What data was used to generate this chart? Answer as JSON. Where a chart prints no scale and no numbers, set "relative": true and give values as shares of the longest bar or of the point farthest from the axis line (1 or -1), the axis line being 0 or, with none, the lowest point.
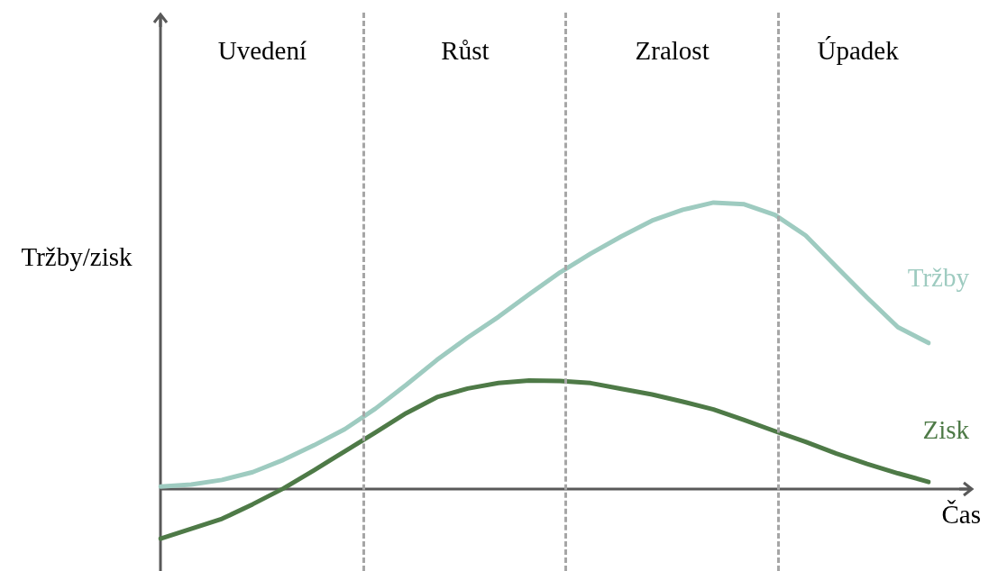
{
  "chart_data": {
    "type": "line",
    "relative": true,
    "xlabel": "Čas",
    "ylabel": "Tržby/zisk",
    "legend": false,
    "marker": "none",
    "line_style": "solid",
    "categories": [
      null,
      null,
      null,
      null,
      null,
      null,
      null,
      null,
      null,
      null,
      null,
      null,
      null,
      null,
      null,
      null,
      null,
      null,
      null,
      null,
      null,
      null,
      null,
      null,
      null,
      null
    ],
    "series": [
      {
        "name": "Tržby",
        "color": "#9ecbc0",
        "values": [
          0.009,
          0.016,
          0.032,
          0.059,
          0.102,
          0.153,
          0.209,
          0.281,
          0.364,
          0.451,
          0.529,
          0.601,
          0.68,
          0.756,
          0.822,
          0.882,
          0.937,
          0.975,
          1,
          0.994,
          0.957,
          0.885,
          0.776,
          0.668,
          0.565,
          0.51
        ]
      },
      {
        "name": "Zisk",
        "color": "#4e7a47",
        "values": [
          -0.173,
          -0.139,
          -0.104,
          -0.053,
          0.002,
          0.066,
          0.132,
          0.198,
          0.265,
          0.321,
          0.351,
          0.37,
          0.379,
          0.377,
          0.37,
          0.35,
          0.33,
          0.305,
          0.278,
          0.241,
          0.202,
          0.165,
          0.124,
          0.088,
          0.055,
          0.025
        ]
      }
    ],
    "annotations": [
      "Uvedení",
      "Růst",
      "Zralost",
      "Úpadek"
    ]
  }
}
